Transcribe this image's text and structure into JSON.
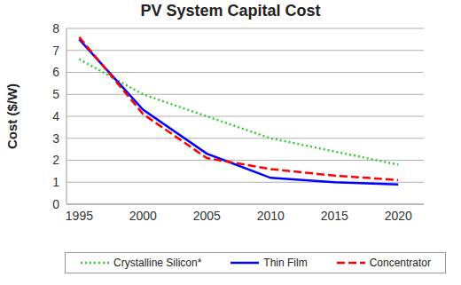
{
  "chart_data": {
    "type": "line",
    "title": "PV System Capital Cost",
    "y_label": "Cost ($/W)",
    "x": [
      1995,
      2000,
      2005,
      2010,
      2015,
      2020
    ],
    "xlim": [
      1994,
      2022
    ],
    "xticks": [
      1995,
      2000,
      2005,
      2010,
      2015,
      2020
    ],
    "ylim": [
      0,
      8
    ],
    "yticks": [
      0,
      1,
      2,
      3,
      4,
      5,
      6,
      7,
      8
    ],
    "grid": true,
    "legend": "bottom",
    "series": [
      {
        "name": "Crystalline Silicon*",
        "color": "#33cc33",
        "line_style": "dotted",
        "values": [
          6.6,
          5.0,
          4.0,
          3.0,
          2.4,
          1.8
        ]
      },
      {
        "name": "Thin Film",
        "color": "#0000ff",
        "line_style": "solid",
        "values": [
          7.5,
          4.3,
          2.3,
          1.2,
          1.0,
          0.9
        ]
      },
      {
        "name": "Concentrator",
        "color": "#ff0000",
        "line_style": "dashed",
        "values": [
          7.6,
          4.1,
          2.1,
          1.6,
          1.3,
          1.1
        ]
      }
    ]
  }
}
